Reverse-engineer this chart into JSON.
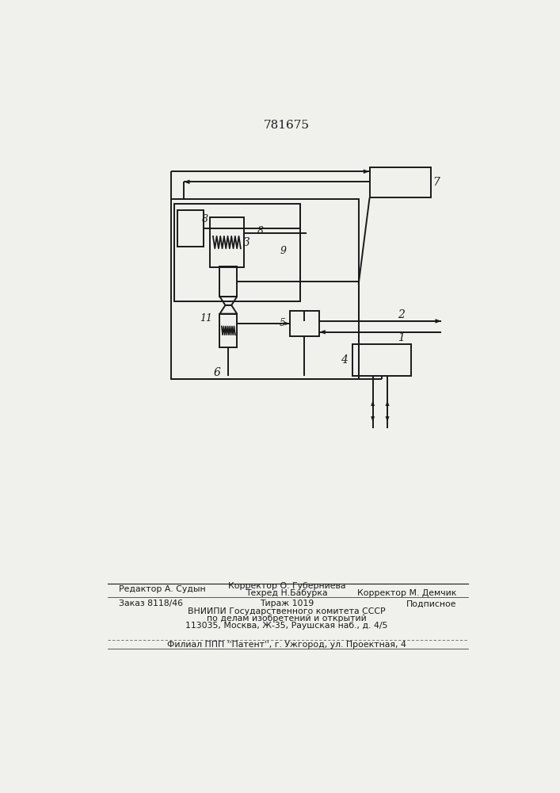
{
  "title": "781675",
  "bg_color": "#f0f0ec",
  "line_color": "#1a1a1a",
  "lw": 1.4,
  "footer": {
    "row1_left": "Редактор А. Судын",
    "row1_mid1": "Корректор О. Губерниева",
    "row1_mid2": "Техред Н.Бабурка",
    "row1_right": "Корректор М. Демчик",
    "row2_left": "Заказ 8118/46",
    "row2_mid": "Тираж 1019",
    "row2_right": "Подписное",
    "row3": "ВНИИПИ Государственного комитета СССР",
    "row4": "по делам изобретений и открытий",
    "row5": "113035, Москва, Ж-35, Раушская наб., д. 4/5",
    "row6": "Филиал ППП ''Патент'', г. Ужгород, ул. Проектная, 4"
  }
}
